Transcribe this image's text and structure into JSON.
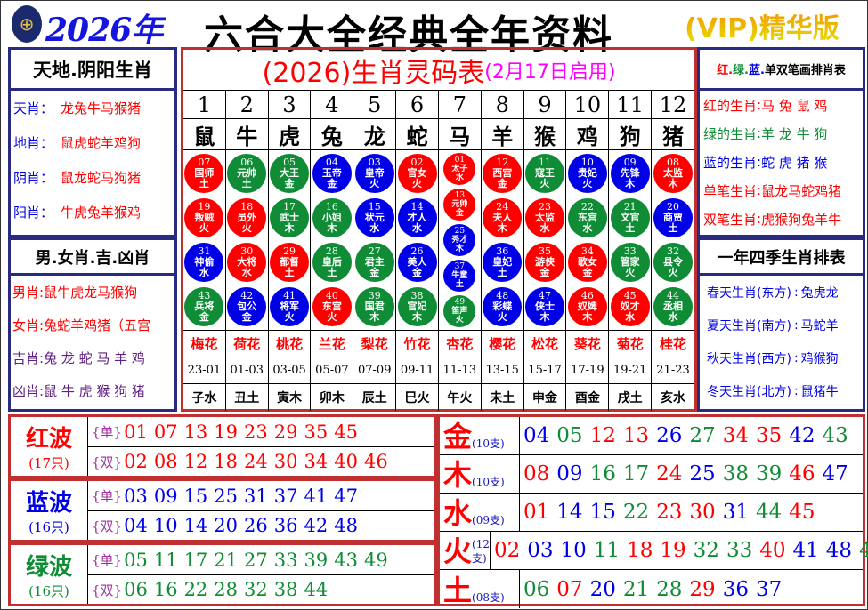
{
  "header": {
    "logo_icon": "horse-racing-emblem",
    "year": "2026年",
    "title": "六合大全经典全年资料",
    "vip": "(VIP)精华版"
  },
  "colors": {
    "red": "#ff0000",
    "green": "#0f8c35",
    "blue": "#0000e6"
  },
  "waves": {
    "red": [
      1,
      2,
      7,
      8,
      12,
      13,
      18,
      19,
      23,
      24,
      29,
      30,
      34,
      35,
      40,
      45,
      46
    ],
    "blue": [
      3,
      4,
      9,
      10,
      14,
      15,
      20,
      25,
      26,
      31,
      36,
      37,
      41,
      42,
      47,
      48
    ],
    "green": [
      5,
      6,
      11,
      16,
      17,
      21,
      22,
      27,
      28,
      32,
      33,
      38,
      39,
      43,
      44,
      49
    ]
  },
  "left": {
    "title1": "天地.阴阳生肖",
    "items1": [
      {
        "k": "天肖",
        "v": "龙兔牛马猴猪"
      },
      {
        "k": "地肖",
        "v": "鼠虎蛇羊鸡狗"
      },
      {
        "k": "阴肖",
        "v": "鼠龙蛇马狗猪"
      },
      {
        "k": "阳肖",
        "v": "牛虎兔羊猴鸡"
      }
    ],
    "title2": "男.女肖.吉.凶肖",
    "items2": [
      {
        "k": "男肖",
        "v": "鼠牛虎龙马猴狗",
        "c": "#f00",
        "vc": "#f00"
      },
      {
        "k": "女肖",
        "v": "兔蛇羊鸡猪（五宫",
        "c": "#f00",
        "vc": "#f00"
      },
      {
        "k": "吉肖",
        "v": "兔 龙 蛇 马 羊 鸡",
        "c": "#602080",
        "vc": "#602080"
      },
      {
        "k": "凶肖",
        "v": "鼠 牛 虎 猴 狗 猪",
        "c": "#602080",
        "vc": "#602080"
      }
    ]
  },
  "right": {
    "title1": [
      "红.",
      "绿.",
      "蓝.",
      "单双笔画排肖表"
    ],
    "items1": [
      {
        "k": "红的生肖",
        "v": "马 兔 鼠 鸡",
        "c": "#f00"
      },
      {
        "k": "绿的生肖",
        "v": "羊 龙 牛 狗",
        "c": "#0f8c35"
      },
      {
        "k": "蓝的生肖",
        "v": "蛇 虎 猪 猴",
        "c": "#0000e6"
      },
      {
        "k": "单笔生肖",
        "v": "鼠龙马蛇鸡猪",
        "c": "#f00"
      },
      {
        "k": "双笔生肖",
        "v": "虎猴狗兔羊牛",
        "c": "#f00"
      }
    ],
    "title2": "一年四季生肖排表",
    "items2": [
      {
        "k": "春天生肖(东方)",
        "v": "兔虎龙"
      },
      {
        "k": "夏天生肖(南方)",
        "v": "马蛇羊"
      },
      {
        "k": "秋天生肖(西方)",
        "v": "鸡猴狗"
      },
      {
        "k": "冬天生肖(北方)",
        "v": "鼠猪牛"
      }
    ]
  },
  "center": {
    "title": "(2026)生肖灵码表",
    "subtitle": "(2月17日启用)",
    "columns": [
      {
        "num": "1",
        "zodiac": "鼠",
        "flower": "梅花",
        "time": "23-01",
        "branch": "子水",
        "balls": [
          [
            "07",
            "国师",
            "土"
          ],
          [
            "19",
            "叛贼",
            "火"
          ],
          [
            "31",
            "神偷",
            "水"
          ],
          [
            "43",
            "兵将",
            "金"
          ]
        ]
      },
      {
        "num": "2",
        "zodiac": "牛",
        "flower": "荷花",
        "time": "01-03",
        "branch": "丑土",
        "balls": [
          [
            "06",
            "元帅",
            "土"
          ],
          [
            "18",
            "员外",
            "火"
          ],
          [
            "30",
            "大将",
            "水"
          ],
          [
            "42",
            "包公",
            "金"
          ]
        ]
      },
      {
        "num": "3",
        "zodiac": "虎",
        "flower": "桃花",
        "time": "03-05",
        "branch": "寅木",
        "balls": [
          [
            "05",
            "大王",
            "金"
          ],
          [
            "17",
            "武士",
            "木"
          ],
          [
            "29",
            "都督",
            "土"
          ],
          [
            "41",
            "将军",
            "火"
          ]
        ]
      },
      {
        "num": "4",
        "zodiac": "兔",
        "flower": "兰花",
        "time": "05-07",
        "branch": "卯木",
        "balls": [
          [
            "04",
            "玉帝",
            "金"
          ],
          [
            "16",
            "小姐",
            "木"
          ],
          [
            "28",
            "皇后",
            "土"
          ],
          [
            "40",
            "东宫",
            "火"
          ]
        ]
      },
      {
        "num": "5",
        "zodiac": "龙",
        "flower": "梨花",
        "time": "07-09",
        "branch": "辰土",
        "balls": [
          [
            "03",
            "皇帝",
            "火"
          ],
          [
            "15",
            "状元",
            "水"
          ],
          [
            "27",
            "君主",
            "金"
          ],
          [
            "39",
            "国君",
            "木"
          ]
        ]
      },
      {
        "num": "6",
        "zodiac": "蛇",
        "flower": "竹花",
        "time": "09-11",
        "branch": "巳火",
        "balls": [
          [
            "02",
            "官女",
            "火"
          ],
          [
            "14",
            "才人",
            "水"
          ],
          [
            "26",
            "美人",
            "金"
          ],
          [
            "38",
            "官妃",
            "木"
          ]
        ]
      },
      {
        "num": "7",
        "zodiac": "马",
        "flower": "杏花",
        "time": "11-13",
        "branch": "午火",
        "balls": [
          [
            "01",
            "太子",
            "水"
          ],
          [
            "13",
            "元帅",
            "金"
          ],
          [
            "25",
            "秀才",
            "木"
          ],
          [
            "37",
            "牛童",
            "土"
          ],
          [
            "49",
            "笛声",
            "火"
          ]
        ]
      },
      {
        "num": "8",
        "zodiac": "羊",
        "flower": "樱花",
        "time": "13-15",
        "branch": "未土",
        "balls": [
          [
            "12",
            "西宫",
            "金"
          ],
          [
            "24",
            "夫人",
            "木"
          ],
          [
            "36",
            "皇妃",
            "土"
          ],
          [
            "48",
            "彩蝶",
            "火"
          ]
        ]
      },
      {
        "num": "9",
        "zodiac": "猴",
        "flower": "松花",
        "time": "15-17",
        "branch": "申金",
        "balls": [
          [
            "11",
            "寇王",
            "火"
          ],
          [
            "23",
            "太监",
            "水"
          ],
          [
            "35",
            "游侠",
            "金"
          ],
          [
            "47",
            "侠士",
            "木"
          ]
        ]
      },
      {
        "num": "10",
        "zodiac": "鸡",
        "flower": "葵花",
        "time": "17-19",
        "branch": "酉金",
        "balls": [
          [
            "10",
            "贵妃",
            "火"
          ],
          [
            "22",
            "东宫",
            "水"
          ],
          [
            "34",
            "歌女",
            "金"
          ],
          [
            "46",
            "奴婢",
            "木"
          ]
        ]
      },
      {
        "num": "11",
        "zodiac": "狗",
        "flower": "菊花",
        "time": "19-21",
        "branch": "戌土",
        "balls": [
          [
            "09",
            "先锋",
            "木"
          ],
          [
            "21",
            "文官",
            "土"
          ],
          [
            "33",
            "管家",
            "火"
          ],
          [
            "45",
            "奴才",
            "水"
          ]
        ]
      },
      {
        "num": "12",
        "zodiac": "猪",
        "flower": "桂花",
        "time": "21-23",
        "branch": "亥水",
        "balls": [
          [
            "08",
            "太监",
            "木"
          ],
          [
            "20",
            "商贾",
            "土"
          ],
          [
            "32",
            "县令",
            "火"
          ],
          [
            "44",
            "丞相",
            "水"
          ]
        ]
      }
    ]
  },
  "wave_table": [
    {
      "name": "红波",
      "count": "(17只)",
      "color": "#f00",
      "odd_label": "{单}",
      "odd": [
        "01",
        "07",
        "13",
        "19",
        "23",
        "29",
        "35",
        "45"
      ],
      "even_label": "{双}",
      "even": [
        "02",
        "08",
        "12",
        "18",
        "24",
        "30",
        "34",
        "40",
        "46"
      ]
    },
    {
      "name": "蓝波",
      "count": "(16只)",
      "color": "#0000e6",
      "odd_label": "{单}",
      "odd": [
        "03",
        "09",
        "15",
        "25",
        "31",
        "37",
        "41",
        "47"
      ],
      "even_label": "{双}",
      "even": [
        "04",
        "10",
        "14",
        "20",
        "26",
        "36",
        "42",
        "48"
      ]
    },
    {
      "name": "绿波",
      "count": "(16只)",
      "color": "#0f8c35",
      "odd_label": "{单}",
      "odd": [
        "05",
        "11",
        "17",
        "21",
        "27",
        "33",
        "39",
        "43",
        "49"
      ],
      "even_label": "{双}",
      "even": [
        "06",
        "16",
        "22",
        "28",
        "32",
        "38",
        "44"
      ]
    }
  ],
  "element_table": [
    {
      "name": "金",
      "count": "(10支)",
      "nums": [
        "04",
        "05",
        "12",
        "13",
        "26",
        "27",
        "34",
        "35",
        "42",
        "43"
      ]
    },
    {
      "name": "木",
      "count": "(10支)",
      "nums": [
        "08",
        "09",
        "16",
        "17",
        "24",
        "25",
        "38",
        "39",
        "46",
        "47"
      ]
    },
    {
      "name": "水",
      "count": "(09支)",
      "nums": [
        "01",
        "14",
        "15",
        "22",
        "23",
        "30",
        "31",
        "44",
        "45"
      ]
    },
    {
      "name": "火",
      "count": "(12支)",
      "nums": [
        "02",
        "03",
        "10",
        "11",
        "18",
        "19",
        "32",
        "33",
        "40",
        "41",
        "48",
        "49"
      ]
    },
    {
      "name": "土",
      "count": "(08支)",
      "nums": [
        "06",
        "07",
        "20",
        "21",
        "28",
        "29",
        "36",
        "37"
      ]
    }
  ]
}
